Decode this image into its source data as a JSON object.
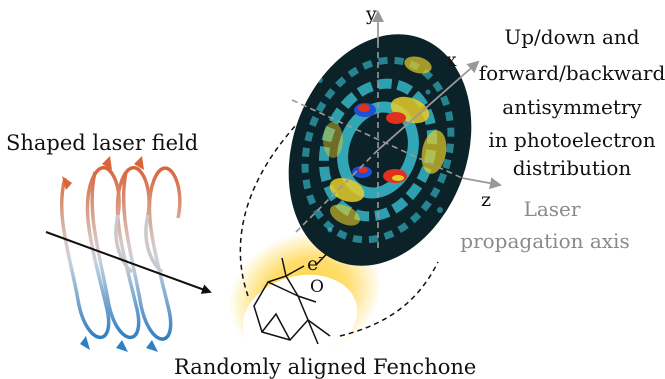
{
  "labels": {
    "shaped_field": "Shaped laser field",
    "molecule": "Randomly aligned Fenchone",
    "electron": "e",
    "electron_sup": "-",
    "oxygen": "O",
    "axis_x": "x",
    "axis_y": "y",
    "axis_z": "z",
    "antisymmetry_lines": [
      "Up/down and",
      "forward/backward",
      "antisymmetry",
      "in photoelectron",
      "distribution"
    ],
    "propagation_lines": [
      "Laser",
      "propagation axis"
    ]
  },
  "colors": {
    "field_orange": "#d9643a",
    "field_blue": "#2f7fc4",
    "detector_bg": "#0b2229",
    "cyan_signal": "#3fd3e6",
    "yellow_signal": "#e6cd2a",
    "red_signal": "#e0301e",
    "blue_signal": "#1f4fd6",
    "glow": "#ffd23a",
    "axis_gray": "#999999"
  }
}
